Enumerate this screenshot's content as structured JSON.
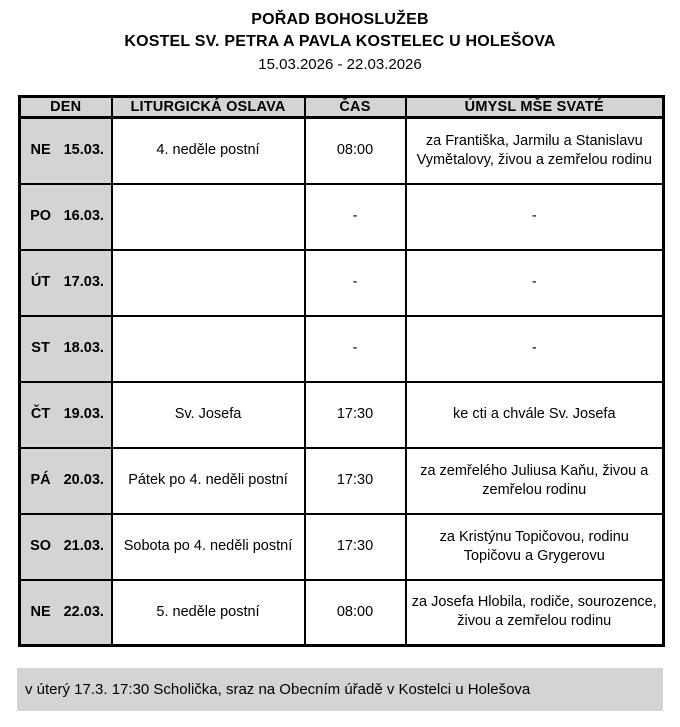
{
  "header": {
    "title_line1": "POŘAD BOHOSLUŽEB",
    "title_line2": "KOSTEL SV. PETRA A PAVLA KOSTELEC U HOLEŠOVA",
    "date_range": "15.03.2026 - 22.03.2026"
  },
  "table": {
    "columns": [
      "DEN",
      "LITURGICKÁ OSLAVA",
      "ČAS",
      "ÚMYSL MŠE SVATÉ"
    ],
    "rows": [
      {
        "day": "NE",
        "date": "15.03.",
        "celebration": "4. neděle postní",
        "time": "08:00",
        "intention": "za Františka, Jarmilu a Stanislavu Vymětalovy, živou a zemřelou rodinu"
      },
      {
        "day": "PO",
        "date": "16.03.",
        "celebration": "",
        "time": "-",
        "intention": "-"
      },
      {
        "day": "ÚT",
        "date": "17.03.",
        "celebration": "",
        "time": "-",
        "intention": "-"
      },
      {
        "day": "ST",
        "date": "18.03.",
        "celebration": "",
        "time": "-",
        "intention": "-"
      },
      {
        "day": "ČT",
        "date": "19.03.",
        "celebration": "Sv. Josefa",
        "time": "17:30",
        "intention": "ke cti a chvále Sv. Josefa"
      },
      {
        "day": "PÁ",
        "date": "20.03.",
        "celebration": "Pátek po 4. neděli postní",
        "time": "17:30",
        "intention": "za zemřelého Juliusa Kaňu, živou a zemřelou rodinu"
      },
      {
        "day": "SO",
        "date": "21.03.",
        "celebration": "Sobota po 4. neděli postní",
        "time": "17:30",
        "intention": "za Kristýnu Topičovou, rodinu Topičovu a Grygerovu"
      },
      {
        "day": "NE",
        "date": "22.03.",
        "celebration": "5. neděle postní",
        "time": "08:00",
        "intention": "za Josefa Hlobila, rodiče, sourozence, živou a zemřelou rodinu"
      }
    ]
  },
  "footer": {
    "note": "v úterý 17.3. 17:30 Scholička, sraz na Obecním úřadě v Kostelci u Holešova"
  },
  "colors": {
    "cell_gray": "#d4d4d4",
    "border": "#000000",
    "background": "#ffffff"
  }
}
